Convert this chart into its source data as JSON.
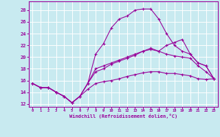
{
  "xlabel": "Windchill (Refroidissement éolien,°C)",
  "background_color": "#c8eaf0",
  "line_color": "#990099",
  "grid_color": "#ffffff",
  "x_ticks": [
    0,
    1,
    2,
    3,
    4,
    5,
    6,
    7,
    8,
    9,
    10,
    11,
    12,
    13,
    14,
    15,
    16,
    17,
    18,
    19,
    20,
    21,
    22,
    23
  ],
  "y_ticks": [
    12,
    14,
    16,
    18,
    20,
    22,
    24,
    26,
    28
  ],
  "ylim": [
    11.5,
    29.5
  ],
  "xlim": [
    -0.5,
    23.5
  ],
  "series": {
    "windchill_upper": [
      15.5,
      14.8,
      14.8,
      14.0,
      13.3,
      12.2,
      13.3,
      15.5,
      20.5,
      22.3,
      25.0,
      26.5,
      27.0,
      28.0,
      28.2,
      28.2,
      26.5,
      24.0,
      22.0,
      21.0,
      20.5,
      19.0,
      18.5,
      16.3
    ],
    "temperature": [
      15.5,
      14.8,
      14.8,
      14.0,
      13.3,
      12.2,
      13.3,
      15.5,
      18.0,
      18.5,
      19.0,
      19.5,
      20.0,
      20.5,
      21.0,
      21.5,
      21.0,
      22.0,
      22.5,
      23.0,
      20.5,
      19.0,
      18.5,
      16.3
    ],
    "line_middle": [
      15.5,
      14.8,
      14.8,
      14.0,
      13.3,
      12.2,
      13.3,
      15.5,
      17.5,
      18.0,
      18.8,
      19.3,
      19.8,
      20.3,
      21.0,
      21.3,
      21.0,
      20.5,
      20.2,
      20.0,
      19.8,
      18.5,
      17.5,
      16.3
    ],
    "line_lower": [
      15.5,
      14.8,
      14.8,
      14.0,
      13.3,
      12.2,
      13.3,
      14.5,
      15.5,
      15.8,
      16.0,
      16.3,
      16.7,
      17.0,
      17.3,
      17.5,
      17.5,
      17.2,
      17.2,
      17.0,
      16.8,
      16.3,
      16.2,
      16.3
    ]
  }
}
